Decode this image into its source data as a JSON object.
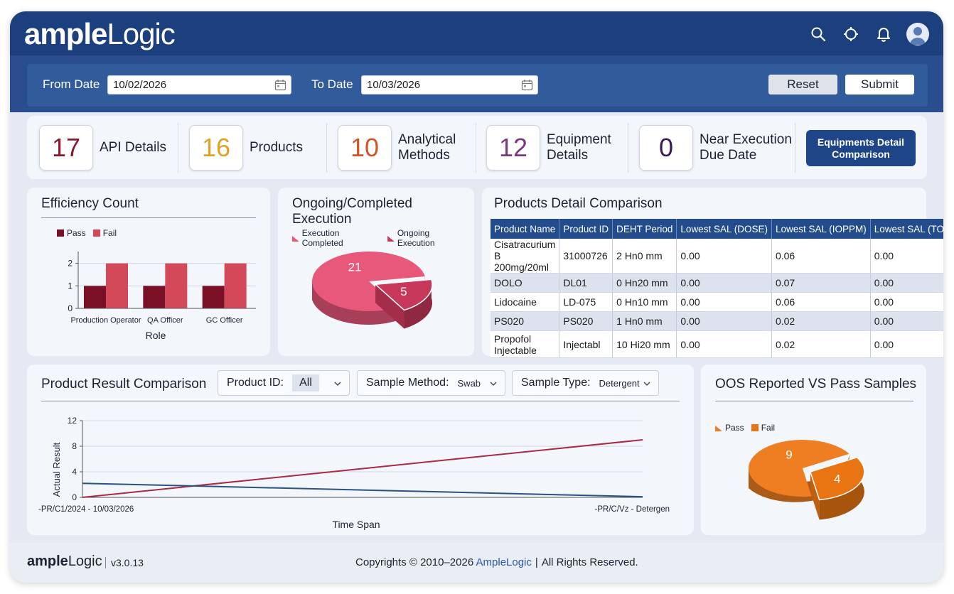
{
  "app": {
    "brand_bold": "ample",
    "brand_light": "Logic"
  },
  "header_icons": [
    "search-icon",
    "location-icon",
    "bell-icon",
    "user-avatar-icon"
  ],
  "filters": {
    "from_label": "From Date",
    "from_value": "10/02/2026",
    "to_label": "To Date",
    "to_value": "10/03/2026",
    "reset_label": "Reset",
    "submit_label": "Submit"
  },
  "stats": [
    {
      "value": "17",
      "label": "API Details",
      "color": "#8a1a2b"
    },
    {
      "value": "16",
      "label": "Products",
      "color": "#e0a126"
    },
    {
      "value": "10",
      "label": "Analytical\nMethods",
      "color": "#d2552a"
    },
    {
      "value": "12",
      "label": "Equipment\nDetails",
      "color": "#7a3a7e"
    },
    {
      "value": "0",
      "label": "Near Execution\nDue Date",
      "color": "#3a1a55"
    }
  ],
  "equip_button": "Equipments Detail Comparison",
  "efficiency": {
    "title": "Efficiency Count",
    "legend_pass": "Pass",
    "legend_fail": "Fail",
    "xlabel": "Role"
  },
  "ongoing": {
    "title": "Ongoing/Completed Execution",
    "legend_completed": "Execution Completed",
    "legend_ongoing": "Ongoing Execution"
  },
  "products_table": {
    "title": "Products Detail Comparison",
    "headers": [
      "Product Name",
      "Product ID",
      "DEHT Period",
      "Lowest SAL (DOSE)",
      "Lowest SAL (IOPPM)",
      "Lowest SAL (TOXICITY)"
    ],
    "rows": [
      [
        "Cisatracurium B 200mg/20ml",
        "31000726",
        "2 Hn0 mm",
        "0.00",
        "0.06",
        "0.00"
      ],
      [
        "DOLO",
        "DL01",
        "0 Hn20 mm",
        "0.00",
        "0.07",
        "0.00"
      ],
      [
        "Lidocaine",
        "LD-075",
        "0 Hn10 mm",
        "0.00",
        "0.06",
        "0.00"
      ],
      [
        "PS020",
        "PS020",
        "1 Hn0 mm",
        "0.00",
        "0.02",
        "0.00"
      ],
      [
        "Propofol Injectable",
        "Injectabl",
        "10 Hi20 mm",
        "0.00",
        "0.02",
        "0.00"
      ]
    ]
  },
  "product_result": {
    "title": "Product Result Comparison",
    "product_id_label": "Product ID:",
    "product_id_value": "All",
    "sample_method_label": "Sample Method:",
    "sample_method_value": "Swab",
    "sample_type_label": "Sample Type:",
    "sample_type_value": "Detergent"
  },
  "oos": {
    "title": "OOS Reported VS Pass Samples",
    "legend_pass": "Pass",
    "legend_fail": "Fail"
  },
  "footer": {
    "brand_bold": "ample",
    "brand_light": "Logic",
    "version": "v3.0.13",
    "copyright_prefix": "Copyrights © 2010–2026",
    "copyright_brand": "AmpleLogic",
    "copyright_suffix": "All Rights Reserved."
  },
  "chart_data": [
    {
      "type": "bar",
      "title": "Efficiency Count",
      "categories": [
        "Production Operator",
        "QA Officer",
        "GC Officer"
      ],
      "series": [
        {
          "name": "Pass",
          "values": [
            1,
            1,
            1
          ],
          "color": "#7a1025"
        },
        {
          "name": "Fail",
          "values": [
            2,
            2,
            2
          ],
          "color": "#d4495a"
        }
      ],
      "xlabel": "Role",
      "ylabel": "",
      "yticks": [
        0,
        1,
        2
      ],
      "ylim": [
        0,
        2.4
      ],
      "legend": "top-left",
      "grid": true
    },
    {
      "type": "pie",
      "title": "Ongoing/Completed Execution",
      "slices": [
        {
          "name": "Execution Completed",
          "value": 21,
          "color": "#e8587a"
        },
        {
          "name": "Ongoing Execution",
          "value": 5,
          "color": "#c8385a"
        }
      ],
      "legend": "top-left"
    },
    {
      "type": "line",
      "title": "Product Result Comparison",
      "x": [
        "-PR/C1/2024 - 10/03/2026",
        "-PR/C/Vz - Detergen"
      ],
      "series": [
        {
          "name": "",
          "values": [
            0,
            9
          ],
          "color": "#a82a45"
        },
        {
          "name": "",
          "values": [
            2.2,
            0.1
          ],
          "color": "#2a5282"
        }
      ],
      "xlabel": "Time Span",
      "ylabel": "Actual Result",
      "yticks": [
        0,
        4,
        8,
        12
      ],
      "ylim": [
        0,
        12
      ],
      "grid": true
    },
    {
      "type": "pie",
      "title": "OOS Reported VS Pass Samples",
      "slices": [
        {
          "name": "Pass",
          "value": 9,
          "color": "#ef7d22"
        },
        {
          "name": "Fail",
          "value": 4,
          "color": "#e87512"
        }
      ],
      "legend": "top-left"
    }
  ]
}
